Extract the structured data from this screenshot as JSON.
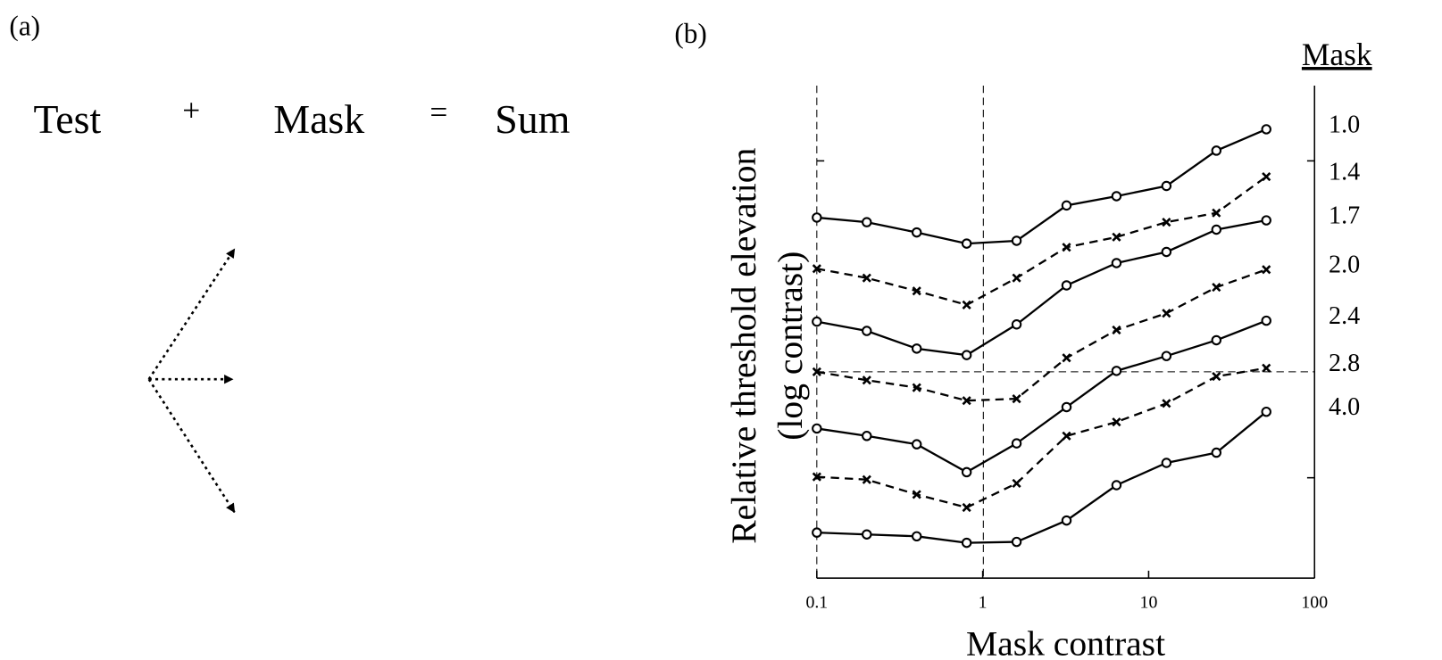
{
  "panel_a": {
    "label": "(a)",
    "equation": [
      "Test",
      "+",
      "Mask",
      "=",
      "Sum"
    ]
  },
  "panel_b_label": "(b)",
  "chart_data": {
    "type": "line",
    "xlabel": "Mask contrast",
    "ylabel": [
      "Relative threshold elevation",
      "(log contrast)"
    ],
    "legend_title": "Mask",
    "x": [
      0.1,
      0.2,
      0.4,
      0.8,
      1.6,
      3.2,
      6.4,
      12.8,
      25.6,
      51.2
    ],
    "xlim": [
      0.1,
      100
    ],
    "xticks": [
      0.1,
      1,
      10,
      100
    ],
    "xscale": "log",
    "ylim": [
      0,
      5.3
    ],
    "series": [
      {
        "name": "1.0",
        "color": "#000000",
        "marker": "o",
        "dashed": false,
        "values": [
          3.88,
          3.83,
          3.72,
          3.6,
          3.63,
          4.01,
          4.11,
          4.22,
          4.6,
          4.83
        ]
      },
      {
        "name": "1.4",
        "color": "#000000",
        "marker": "x",
        "dashed": true,
        "values": [
          3.33,
          3.23,
          3.09,
          2.94,
          3.23,
          3.56,
          3.67,
          3.83,
          3.93,
          4.32
        ]
      },
      {
        "name": "1.7",
        "color": "#000000",
        "marker": "o",
        "dashed": false,
        "values": [
          2.76,
          2.66,
          2.47,
          2.4,
          2.73,
          3.15,
          3.39,
          3.51,
          3.75,
          3.85
        ]
      },
      {
        "name": "2.0",
        "color": "#000000",
        "marker": "x",
        "dashed": true,
        "values": [
          2.22,
          2.13,
          2.05,
          1.91,
          1.93,
          2.37,
          2.67,
          2.85,
          3.13,
          3.32
        ]
      },
      {
        "name": "2.4",
        "color": "#000000",
        "marker": "o",
        "dashed": false,
        "values": [
          1.61,
          1.53,
          1.44,
          1.14,
          1.45,
          1.84,
          2.23,
          2.39,
          2.56,
          2.77
        ]
      },
      {
        "name": "2.8",
        "color": "#000000",
        "marker": "x",
        "dashed": true,
        "values": [
          1.09,
          1.06,
          0.9,
          0.76,
          1.02,
          1.53,
          1.68,
          1.88,
          2.17,
          2.26
        ]
      },
      {
        "name": "4.0",
        "color": "#000000",
        "marker": "o",
        "dashed": false,
        "values": [
          0.49,
          0.47,
          0.45,
          0.38,
          0.39,
          0.62,
          1.0,
          1.24,
          1.35,
          1.79
        ]
      }
    ]
  }
}
